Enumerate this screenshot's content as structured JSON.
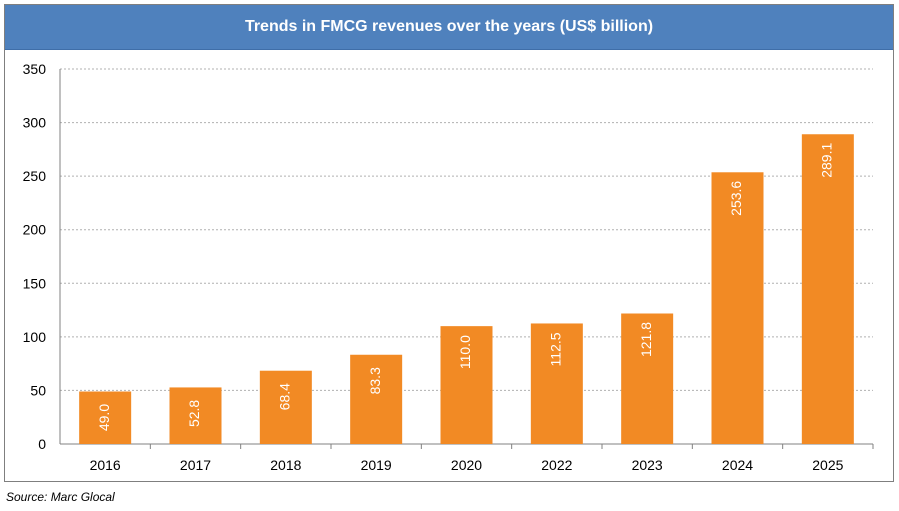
{
  "source": "Source: Marc Glocal",
  "colors": {
    "bar": "#f28a24",
    "title_bg": "#4f81bd",
    "grid": "#b0b0b0"
  },
  "chart_data": {
    "type": "bar",
    "title": "Trends in FMCG revenues over the years (US$ billion)",
    "categories": [
      "2016",
      "2017",
      "2018",
      "2019",
      "2020",
      "2022",
      "2023",
      "2024",
      "2025"
    ],
    "values": [
      49.0,
      52.8,
      68.4,
      83.3,
      110.0,
      112.5,
      121.8,
      253.6,
      289.1
    ],
    "value_labels": [
      "49.0",
      "52.8",
      "68.4",
      "83.3",
      "110.0",
      "112.5",
      "121.8",
      "253.6",
      "289.1"
    ],
    "y_ticks": [
      "0",
      "50",
      "100",
      "150",
      "200",
      "250",
      "300",
      "350"
    ],
    "ylim": [
      0,
      350
    ],
    "xlabel": "",
    "ylabel": "",
    "grid": true,
    "legend": "none"
  }
}
